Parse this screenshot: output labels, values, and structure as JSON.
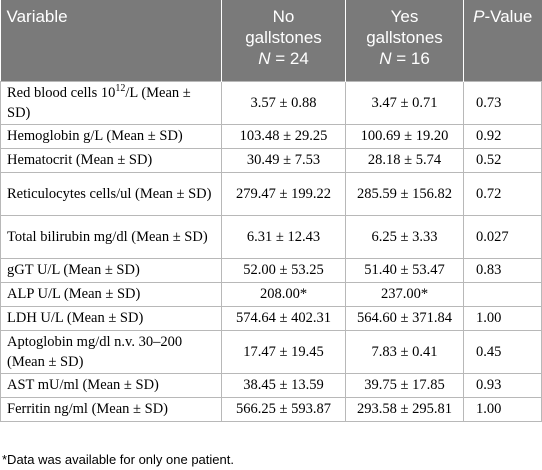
{
  "header": {
    "variable": "Variable",
    "no_line1": "No",
    "no_line2": "gallstones",
    "no_n_label": "N",
    "no_n_value": " = 24",
    "yes_line1": "Yes",
    "yes_line2": "gallstones",
    "yes_n_label": "N",
    "yes_n_value": " = 16",
    "p_italic": "P",
    "p_rest": "-Value"
  },
  "rows": [
    {
      "var_pre": "Red blood cells 10",
      "var_sup": "12",
      "var_post": "/L (Mean ± SD)",
      "no": "3.57 ± 0.88",
      "yes": "3.47 ± 0.71",
      "p": "0.73"
    },
    {
      "var": "Hemoglobin g/L (Mean ± SD)",
      "no": "103.48 ± 29.25",
      "yes": "100.69 ± 19.20",
      "p": "0.92"
    },
    {
      "var": "Hematocrit (Mean ± SD)",
      "no": "30.49 ± 7.53",
      "yes": "28.18 ± 5.74",
      "p": "0.52"
    },
    {
      "var": "Reticulocytes cells/ul (Mean ± SD)",
      "no": "279.47 ± 199.22",
      "yes": "285.59 ± 156.82",
      "p": "0.72"
    },
    {
      "var": "Total bilirubin mg/dl (Mean ± SD)",
      "no": "6.31 ± 12.43",
      "yes": "6.25 ± 3.33",
      "p": "0.027"
    },
    {
      "var": "gGT U/L (Mean ± SD)",
      "no": "52.00 ± 53.25",
      "yes": "51.40 ± 53.47",
      "p": "0.83"
    },
    {
      "var": "ALP U/L (Mean ± SD)",
      "no": "208.00*",
      "yes": "237.00*",
      "p": ""
    },
    {
      "var": "LDH U/L (Mean ± SD)",
      "no": "574.64 ± 402.31",
      "yes": "564.60 ± 371.84",
      "p": "1.00"
    },
    {
      "var": "Aptoglobin mg/dl n.v. 30–200 (Mean ± SD)",
      "no": "17.47 ± 19.45",
      "yes": "7.83 ± 0.41",
      "p": "0.45"
    },
    {
      "var": "AST mU/ml (Mean ± SD)",
      "no": "38.45 ± 13.59",
      "yes": "39.75 ± 17.85",
      "p": "0.93"
    },
    {
      "var": "Ferritin ng/ml (Mean ± SD)",
      "no": "566.25 ± 593.87",
      "yes": "293.58 ± 295.81",
      "p": "1.00"
    }
  ],
  "footnote": "*Data was available for only one patient."
}
